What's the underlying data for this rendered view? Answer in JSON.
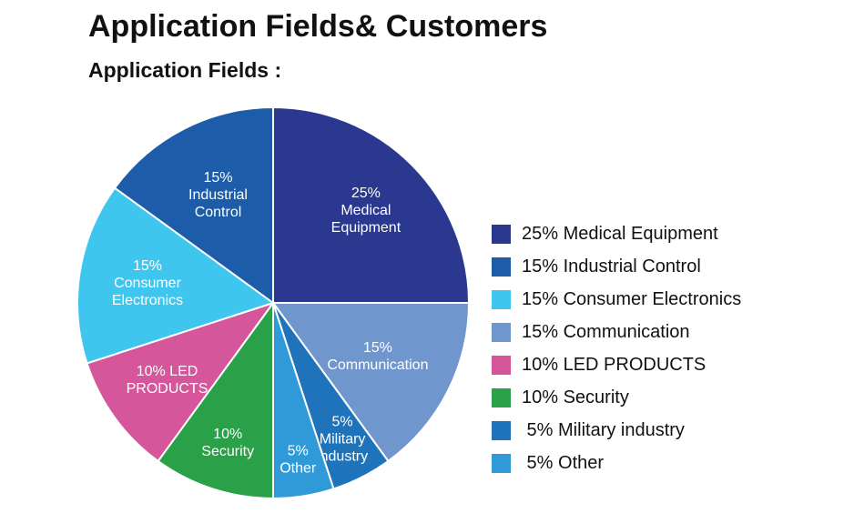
{
  "page": {
    "title": "Application Fields& Customers",
    "subtitle": "Application Fields :"
  },
  "chart_data": {
    "type": "pie",
    "title": "Application Fields",
    "unit": "%",
    "start_angle_deg": 0,
    "direction": "clockwise",
    "legend_position": "right",
    "slices": [
      {
        "label": "Medical Equipment",
        "value": 25,
        "color": "#2a3890",
        "label_lines": [
          "25%",
          "Medical",
          "Equipment"
        ],
        "label_radius": 0.67
      },
      {
        "label": "Communication",
        "value": 15,
        "color": "#7096ce",
        "label_lines": [
          "15%",
          "Communication"
        ],
        "label_radius": 0.6
      },
      {
        "label": "Military industry",
        "value": 5,
        "color": "#1e73ba",
        "label_lines": [
          "5%",
          "Military",
          "industry"
        ],
        "label_radius": 0.78
      },
      {
        "label": "Other",
        "value": 5,
        "color": "#2f9ad7",
        "label_lines": [
          "5%",
          "Other"
        ],
        "label_radius": 0.81
      },
      {
        "label": "Security",
        "value": 10,
        "color": "#2aa148",
        "label_lines": [
          "10%",
          "Security"
        ],
        "label_radius": 0.75
      },
      {
        "label": "LED PRODUCTS",
        "value": 10,
        "color": "#d5569b",
        "label_lines": [
          "10% LED",
          "PRODUCTS"
        ],
        "label_radius": 0.67
      },
      {
        "label": "Consumer Electronics",
        "value": 15,
        "color": "#3ec6ef",
        "label_lines": [
          "15%",
          "Consumer",
          "Electronics"
        ],
        "label_radius": 0.65
      },
      {
        "label": "Industrial Control",
        "value": 15,
        "color": "#1c5ca8",
        "label_lines": [
          "15%",
          "Industrial",
          "Control"
        ],
        "label_radius": 0.62
      }
    ],
    "legend": [
      {
        "label": "25% Medical Equipment",
        "color": "#2a3890"
      },
      {
        "label": "15% Industrial Control",
        "color": "#1c5ca8"
      },
      {
        "label": "15% Consumer Electronics",
        "color": "#3ec6ef"
      },
      {
        "label": "15% Communication",
        "color": "#7096ce"
      },
      {
        "label": "10% LED PRODUCTS",
        "color": "#d5569b"
      },
      {
        "label": "10% Security",
        "color": "#2aa148"
      },
      {
        "label": " 5% Military industry",
        "color": "#1e73ba"
      },
      {
        "label": " 5% Other",
        "color": "#2f9ad7"
      }
    ]
  }
}
